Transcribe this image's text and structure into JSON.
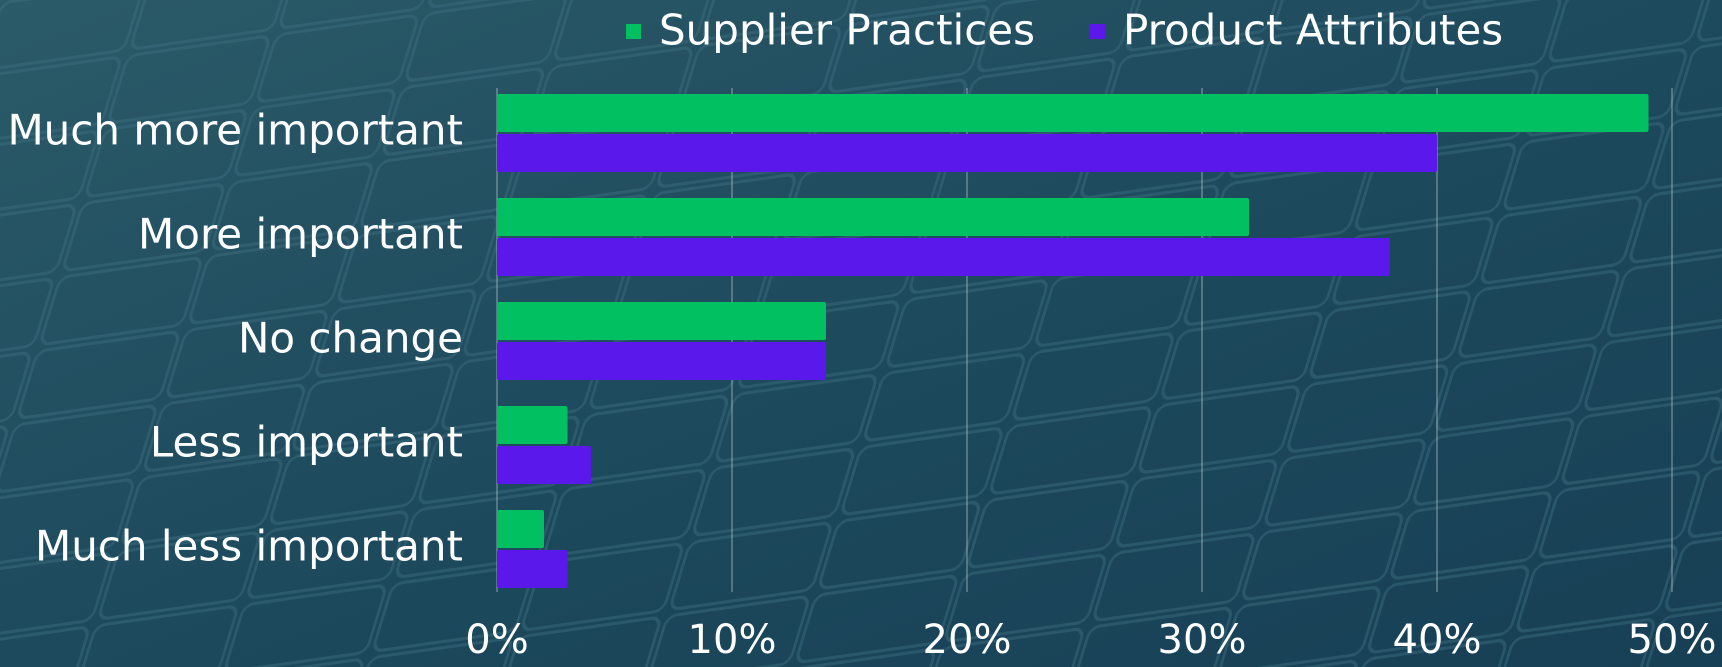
{
  "chart_data": {
    "type": "barh",
    "categories": [
      "Much more important",
      "More important",
      "No change",
      "Less important",
      "Much less important"
    ],
    "series": [
      {
        "name": "Supplier Practices",
        "color": "#00c062",
        "values": [
          49,
          32,
          14,
          3,
          2
        ]
      },
      {
        "name": "Product Attributes",
        "color": "#5b18ea",
        "values": [
          40,
          38,
          14,
          4,
          3
        ]
      }
    ],
    "xlim": [
      0,
      50
    ],
    "xticks": [
      {
        "value": 0,
        "label": "0%"
      },
      {
        "value": 10,
        "label": "10%"
      },
      {
        "value": 20,
        "label": "20%"
      },
      {
        "value": 30,
        "label": "30%"
      },
      {
        "value": 40,
        "label": "40%"
      },
      {
        "value": 50,
        "label": "50%"
      }
    ],
    "grid": true,
    "legend": "top"
  }
}
